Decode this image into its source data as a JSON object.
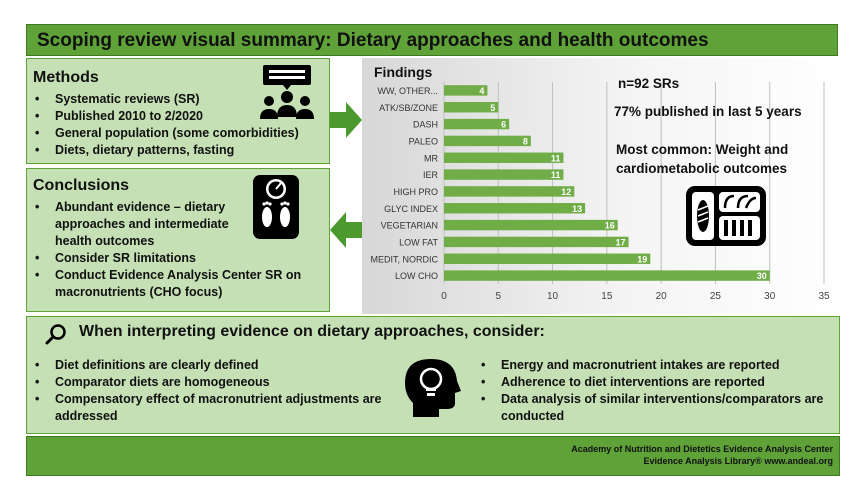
{
  "header": {
    "title": "Scoping review visual summary: Dietary approaches and health outcomes"
  },
  "methods": {
    "title": "Methods",
    "items": [
      "Systematic reviews (SR)",
      "Published  2010 to 2/2020",
      "General population  (some comorbidities)",
      "Diets, dietary patterns, fasting"
    ],
    "icon": "presentation-audience-icon"
  },
  "conclusions": {
    "title": "Conclusions",
    "items": [
      "Abundant evidence – dietary approaches and intermediate health outcomes",
      "Consider  SR limitations",
      "Conduct Evidence Analysis Center SR on macronutrients  (CHO focus)"
    ],
    "icon": "bathroom-scale-icon"
  },
  "findings": {
    "title": "Findings",
    "stat_count": "n=92 SRs",
    "stat_recent": "77% published in last 5 years",
    "stat_common": "Most common: Weight and cardiometabolic outcomes",
    "icon": "meal-tray-icon"
  },
  "chart_data": {
    "type": "bar",
    "orientation": "horizontal",
    "categories": [
      "WW, OTHER...",
      "ATK/SB/ZONE",
      "DASH",
      "PALEO",
      "MR",
      "IER",
      "HIGH PRO",
      "GLYC INDEX",
      "VEGETARIAN",
      "LOW FAT",
      "MEDIT, NORDIC",
      "LOW CHO"
    ],
    "values": [
      4,
      5,
      6,
      8,
      11,
      11,
      12,
      13,
      16,
      17,
      19,
      30
    ],
    "xlim": [
      0,
      35
    ],
    "xticks": [
      0,
      5,
      10,
      15,
      20,
      25,
      30,
      35
    ],
    "bar_color": "#70ad47",
    "data_labels": true,
    "grid": true
  },
  "consider": {
    "title": "When interpreting evidence on dietary approaches, consider:",
    "left_items": [
      "Diet definitions are clearly defined",
      "Comparator diets are homogeneous",
      "Compensatory effect of macronutrient  adjustments are addressed"
    ],
    "right_items": [
      "Energy and macronutrient  intakes are reported",
      "Adherence to diet interventions are reported",
      "Data analysis of similar interventions/comparators are conducted"
    ],
    "icons": [
      "magnifier-icon",
      "head-lightbulb-icon"
    ]
  },
  "footer": {
    "line1": "Academy of Nutrition and Dietetics Evidence Analysis Center",
    "line2": "Evidence Analysis Library®   www.andeal.org"
  },
  "colors": {
    "green_dark": "#5ea238",
    "green_light": "#c5e0b4",
    "bar": "#70ad47"
  }
}
